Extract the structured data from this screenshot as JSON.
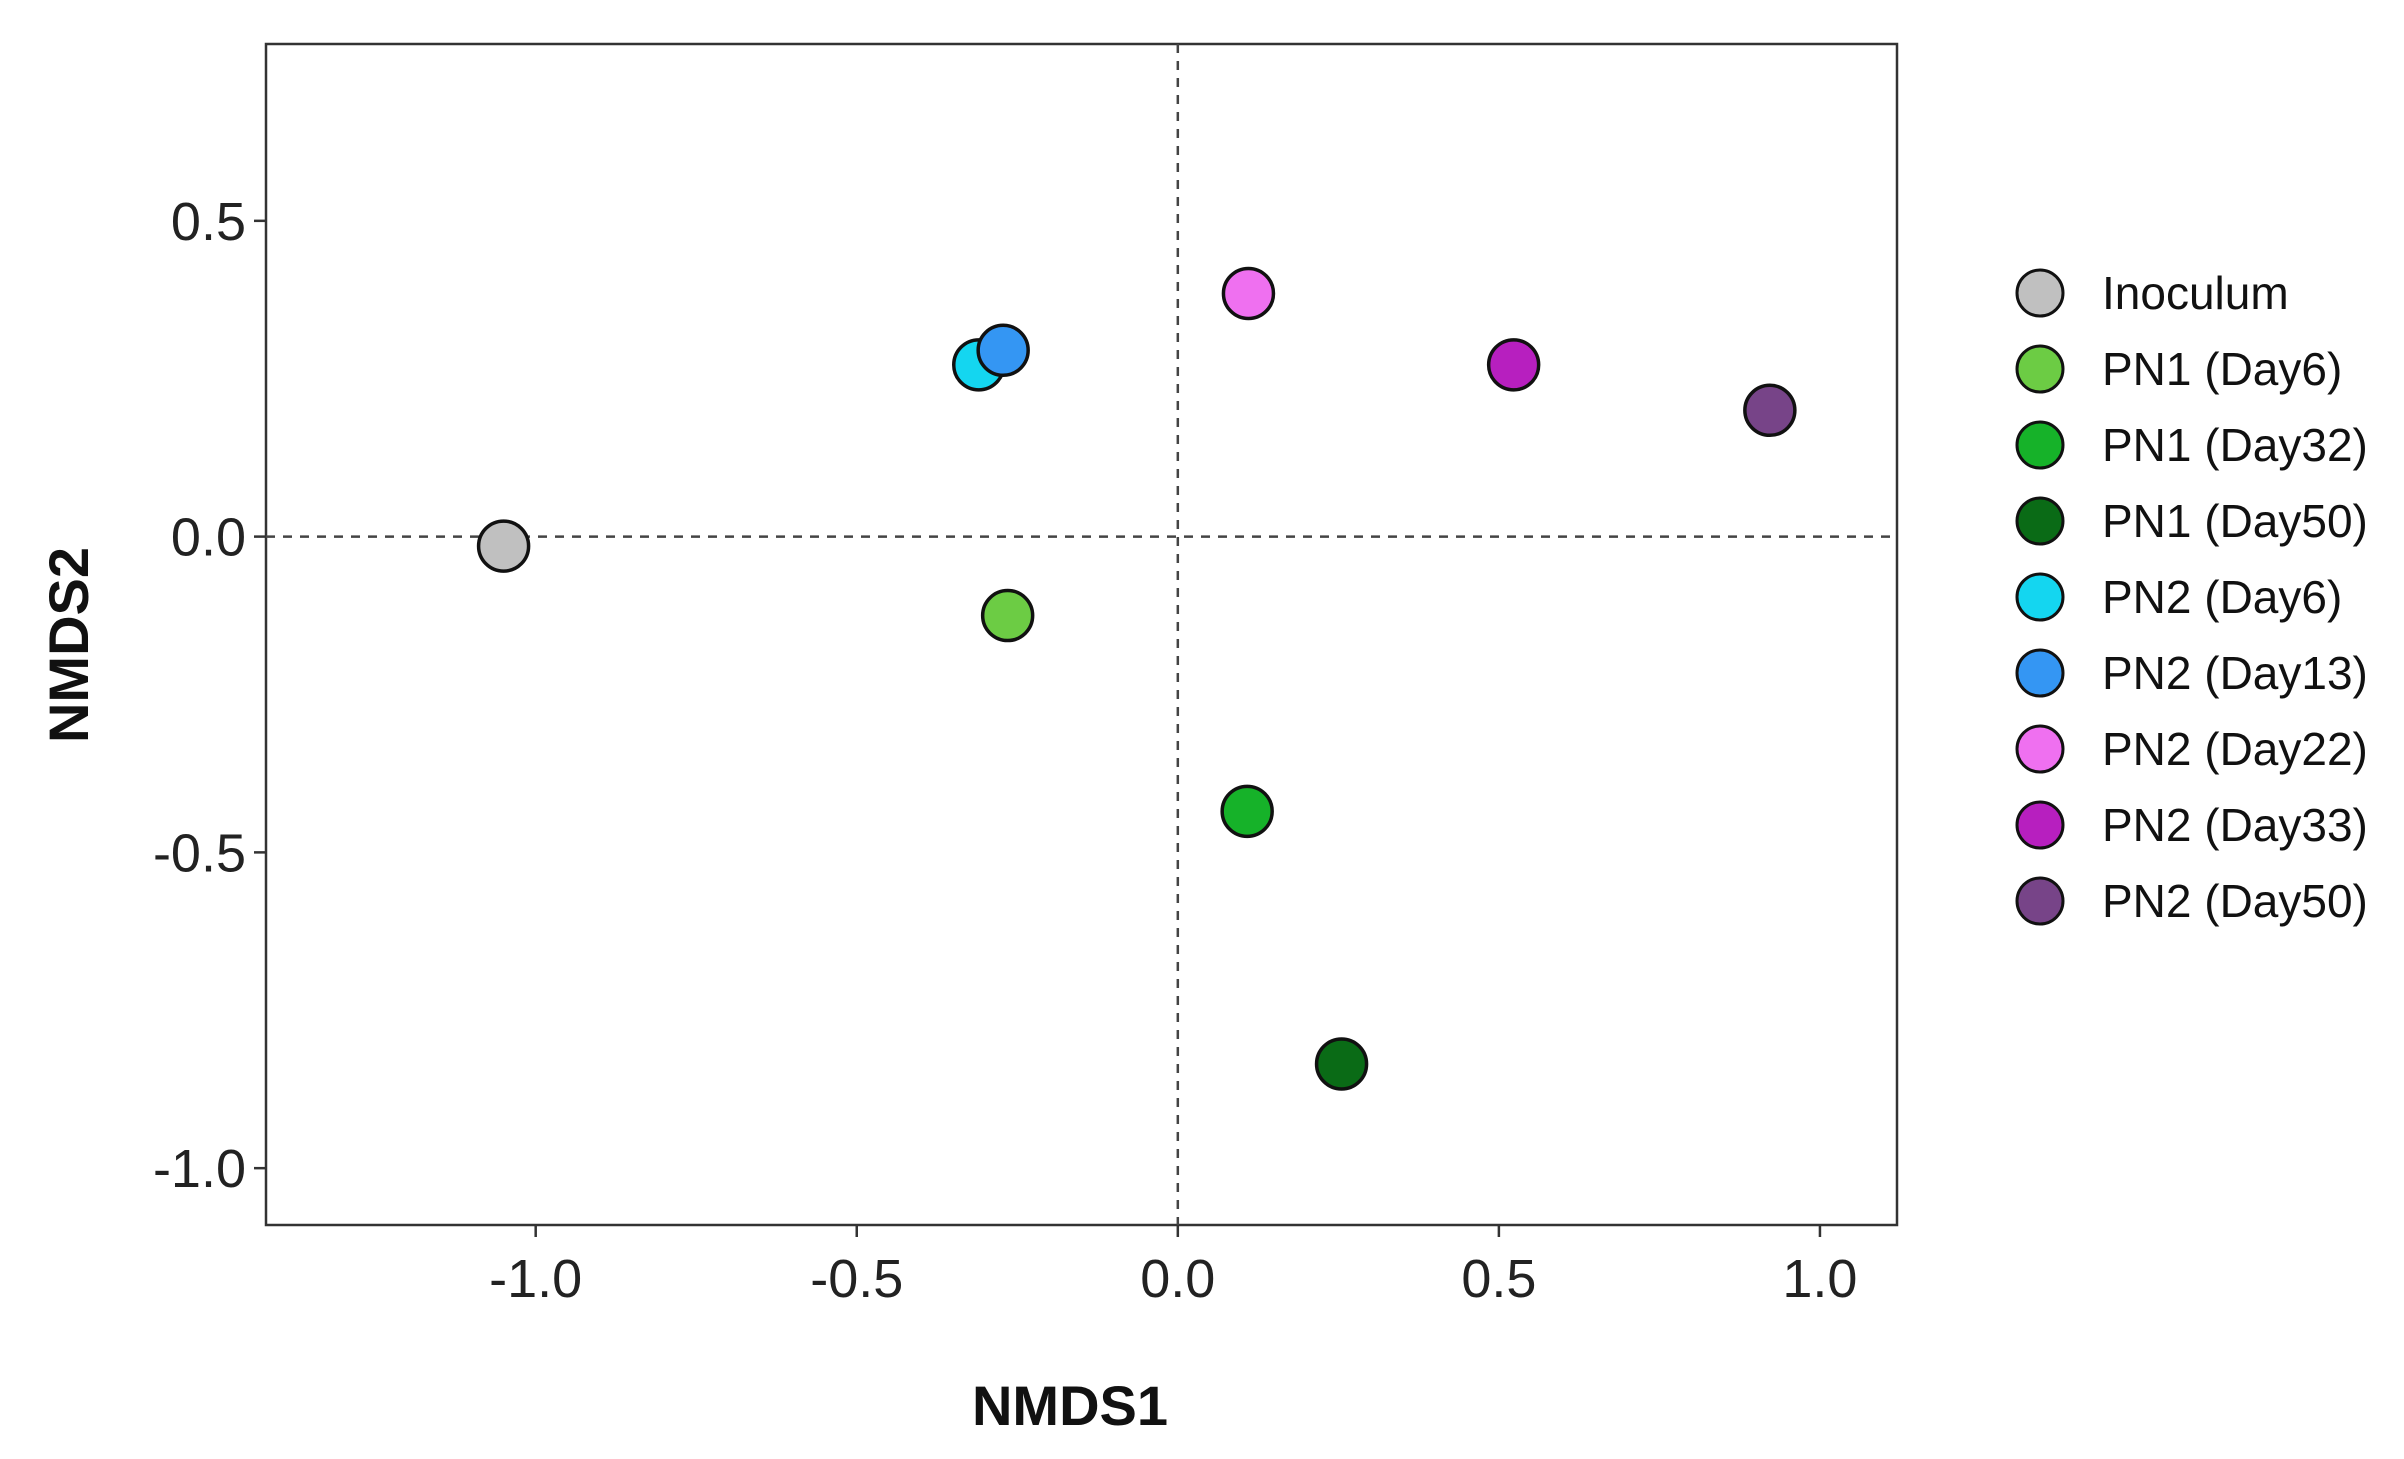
{
  "chart_data": {
    "type": "scatter",
    "xlabel": "NMDS1",
    "ylabel": "NMDS2",
    "xlim": [
      -1.42,
      1.12
    ],
    "ylim": [
      -1.09,
      0.78
    ],
    "x_ticks": [
      -1.0,
      -0.5,
      0.0,
      0.5,
      1.0
    ],
    "x_tick_labels": [
      "-1.0",
      "-0.5",
      "0.0",
      "0.5",
      "1.0"
    ],
    "y_ticks": [
      0.5,
      0.0,
      -0.5,
      -1.0
    ],
    "y_tick_labels": [
      "0.5",
      "0.0",
      "-0.5",
      "-1.0"
    ],
    "reference_lines": {
      "x": 0.0,
      "y": 0.0,
      "style": "dashed"
    },
    "grid": false,
    "legend_position": "right",
    "series": [
      {
        "name": "Inoculum",
        "color": "#c0c0c0",
        "x": -1.05,
        "y": -0.015
      },
      {
        "name": "PN1 (Day6)",
        "color": "#6ccc44",
        "x": -0.265,
        "y": -0.125
      },
      {
        "name": "PN1 (Day32)",
        "color": "#16b229",
        "x": 0.108,
        "y": -0.435
      },
      {
        "name": "PN1 (Day50)",
        "color": "#0a6b16",
        "x": 0.255,
        "y": -0.835
      },
      {
        "name": "PN2 (Day6)",
        "color": "#14d6f0",
        "x": -0.31,
        "y": 0.272
      },
      {
        "name": "PN2 (Day13)",
        "color": "#3496f3",
        "x": -0.272,
        "y": 0.295
      },
      {
        "name": "PN2 (Day22)",
        "color": "#ef70f0",
        "x": 0.11,
        "y": 0.385
      },
      {
        "name": "PN2 (Day33)",
        "color": "#b71fbf",
        "x": 0.523,
        "y": 0.272
      },
      {
        "name": "PN2 (Day50)",
        "color": "#774488",
        "x": 0.922,
        "y": 0.2
      }
    ],
    "legend_order": [
      "Inoculum",
      "PN1 (Day6)",
      "PN1 (Day32)",
      "PN1 (Day50)",
      "PN2 (Day6)",
      "PN2 (Day13)",
      "PN2 (Day22)",
      "PN2 (Day33)",
      "PN2 (Day50)"
    ]
  }
}
